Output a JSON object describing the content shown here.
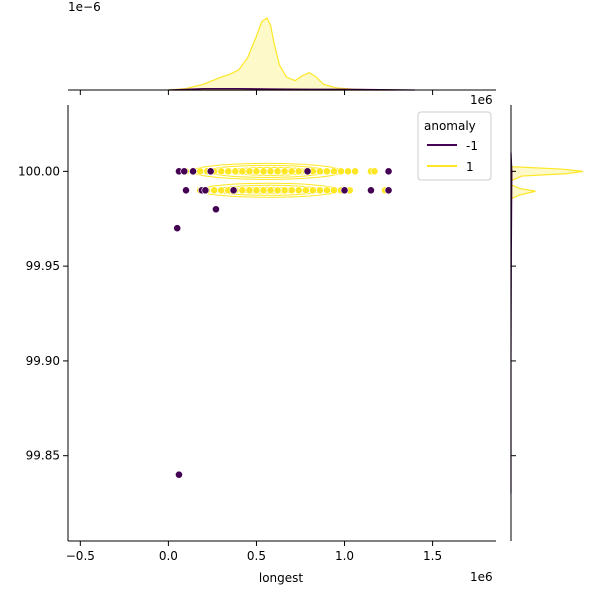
{
  "chart_data": {
    "type": "scatter",
    "title": "",
    "xlabel": "longest",
    "ylabel": "",
    "x_scale_label": "1e6",
    "y_scale_label": "1e6",
    "top_marginal_scale_label": "1e−6",
    "xlim": [
      -0.57,
      1.86
    ],
    "ylim": [
      99.805,
      100.035
    ],
    "x_ticks": [
      -0.5,
      0.0,
      0.5,
      1.0,
      1.5
    ],
    "x_tick_labels": [
      "−0.5",
      "0.0",
      "0.5",
      "1.0",
      "1.5"
    ],
    "y_ticks": [
      99.85,
      99.9,
      99.95,
      100.0
    ],
    "y_tick_labels": [
      "99.85",
      "99.90",
      "99.95",
      "100.00"
    ],
    "grid": false,
    "legend": {
      "title": "anomaly",
      "placement": "top-right",
      "entries": [
        {
          "label": "-1",
          "color": "#440154"
        },
        {
          "label": "1",
          "color": "#fde725"
        }
      ]
    },
    "colors": {
      "-1": "#440154",
      "1": "#fde725"
    },
    "series": [
      {
        "name": "1",
        "points": [
          [
            0.1,
            100.0
          ],
          [
            0.14,
            100.0
          ],
          [
            0.18,
            100.0
          ],
          [
            0.22,
            100.0
          ],
          [
            0.26,
            100.0
          ],
          [
            0.3,
            100.0
          ],
          [
            0.34,
            100.0
          ],
          [
            0.38,
            100.0
          ],
          [
            0.42,
            100.0
          ],
          [
            0.46,
            100.0
          ],
          [
            0.5,
            100.0
          ],
          [
            0.54,
            100.0
          ],
          [
            0.58,
            100.0
          ],
          [
            0.62,
            100.0
          ],
          [
            0.66,
            100.0
          ],
          [
            0.7,
            100.0
          ],
          [
            0.74,
            100.0
          ],
          [
            0.78,
            100.0
          ],
          [
            0.82,
            100.0
          ],
          [
            0.86,
            100.0
          ],
          [
            0.9,
            100.0
          ],
          [
            0.94,
            100.0
          ],
          [
            0.98,
            100.0
          ],
          [
            1.02,
            100.0
          ],
          [
            1.06,
            100.0
          ],
          [
            1.15,
            100.0
          ],
          [
            1.17,
            100.0
          ],
          [
            0.18,
            99.99
          ],
          [
            0.22,
            99.99
          ],
          [
            0.26,
            99.99
          ],
          [
            0.3,
            99.99
          ],
          [
            0.34,
            99.99
          ],
          [
            0.38,
            99.99
          ],
          [
            0.42,
            99.99
          ],
          [
            0.46,
            99.99
          ],
          [
            0.5,
            99.99
          ],
          [
            0.54,
            99.99
          ],
          [
            0.58,
            99.99
          ],
          [
            0.62,
            99.99
          ],
          [
            0.66,
            99.99
          ],
          [
            0.7,
            99.99
          ],
          [
            0.74,
            99.99
          ],
          [
            0.78,
            99.99
          ],
          [
            0.82,
            99.99
          ],
          [
            0.86,
            99.99
          ],
          [
            0.9,
            99.99
          ],
          [
            0.94,
            99.99
          ],
          [
            0.98,
            99.99
          ],
          [
            1.03,
            99.99
          ],
          [
            1.23,
            99.99
          ]
        ]
      },
      {
        "name": "-1",
        "points": [
          [
            0.06,
            100.0
          ],
          [
            0.09,
            100.0
          ],
          [
            0.14,
            100.0
          ],
          [
            0.24,
            100.0
          ],
          [
            0.79,
            100.0
          ],
          [
            1.25,
            100.0
          ],
          [
            0.1,
            99.99
          ],
          [
            0.19,
            99.99
          ],
          [
            0.21,
            99.99
          ],
          [
            0.37,
            99.99
          ],
          [
            1.0,
            99.99
          ],
          [
            1.15,
            99.99
          ],
          [
            1.25,
            99.99
          ],
          [
            0.27,
            99.98
          ],
          [
            0.05,
            99.97
          ],
          [
            0.06,
            99.84
          ]
        ]
      }
    ],
    "marginal_x": {
      "series": [
        {
          "name": "1",
          "x": [
            0.0,
            0.1,
            0.2,
            0.3,
            0.35,
            0.4,
            0.45,
            0.5,
            0.53,
            0.56,
            0.58,
            0.6,
            0.63,
            0.67,
            0.72,
            0.76,
            0.8,
            0.84,
            0.88,
            0.95,
            1.05,
            1.2,
            1.3
          ],
          "density": [
            0.0,
            0.02,
            0.08,
            0.18,
            0.22,
            0.28,
            0.45,
            0.75,
            0.95,
            1.0,
            0.9,
            0.65,
            0.35,
            0.18,
            0.13,
            0.2,
            0.24,
            0.18,
            0.08,
            0.03,
            0.01,
            0.0,
            0.0
          ]
        },
        {
          "name": "-1",
          "x": [
            0.0,
            0.2,
            0.4,
            0.6,
            0.8,
            1.0,
            1.2,
            1.4
          ],
          "density": [
            0.0,
            0.02,
            0.02,
            0.015,
            0.01,
            0.01,
            0.005,
            0.0
          ]
        }
      ]
    },
    "marginal_y": {
      "series": [
        {
          "name": "1",
          "y": [
            99.9855,
            99.9875,
            99.9895,
            99.991,
            99.993,
            99.995,
            99.9975,
            99.9988,
            100.0,
            100.0012,
            100.0025
          ],
          "density": [
            0.0,
            0.12,
            0.34,
            0.12,
            0.0,
            0.0,
            0.15,
            0.78,
            1.0,
            0.7,
            0.0
          ]
        },
        {
          "name": "-1",
          "y": [
            99.83,
            99.9,
            99.96,
            99.99,
            100.0,
            100.01
          ],
          "density": [
            0.0,
            0.0,
            0.005,
            0.01,
            0.012,
            0.0
          ]
        }
      ]
    }
  }
}
